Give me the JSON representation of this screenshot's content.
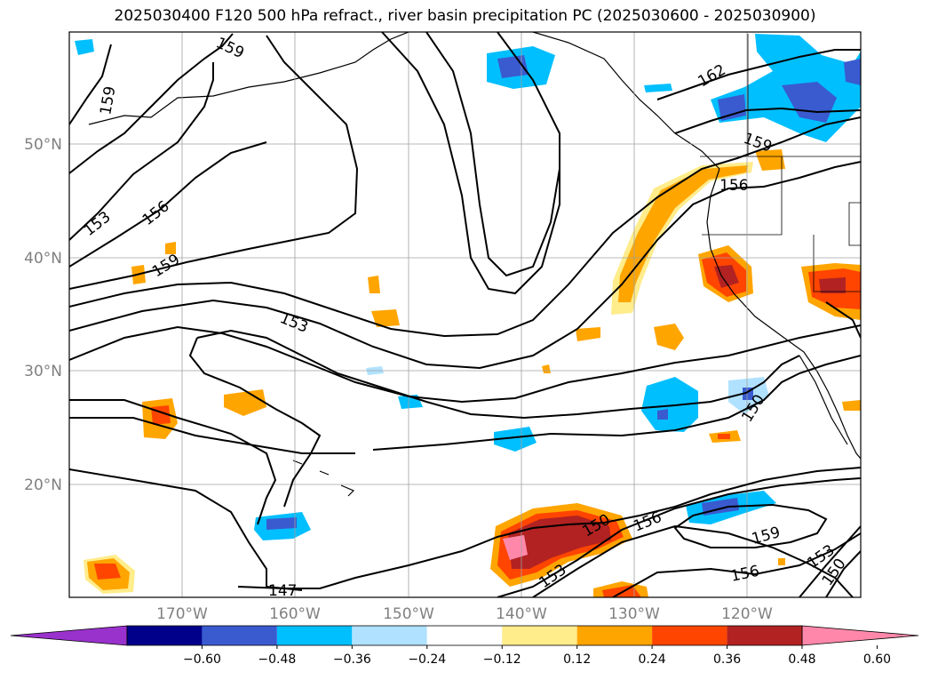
{
  "title": "2025030400 F120 500 hPa refract., river basin precipitation PC (2025030600 - 2025030900)",
  "lat_labels": [
    "50°N",
    "40°N",
    "30°N",
    "20°N"
  ],
  "lon_labels": [
    "170°W",
    "160°W",
    "150°W",
    "140°W",
    "130°W",
    "120°W"
  ],
  "contour_labels": [
    "159",
    "159",
    "153",
    "156",
    "159",
    "153",
    "162",
    "159",
    "156",
    "150",
    "147",
    "150",
    "153",
    "156",
    "159",
    "156",
    "153",
    "150"
  ],
  "colorbar": {
    "colors": [
      "#9932cc",
      "#00008b",
      "#3a5bd0",
      "#00bfff",
      "#b0e2ff",
      "#ffffff",
      "#ffec8b",
      "#ffa500",
      "#ff4500",
      "#b22222",
      "#ff88aa"
    ],
    "tick_labels": [
      "−0.60",
      "−0.48",
      "−0.36",
      "−0.24",
      "−0.12",
      "0.12",
      "0.24",
      "0.36",
      "0.48",
      "0.60"
    ]
  }
}
